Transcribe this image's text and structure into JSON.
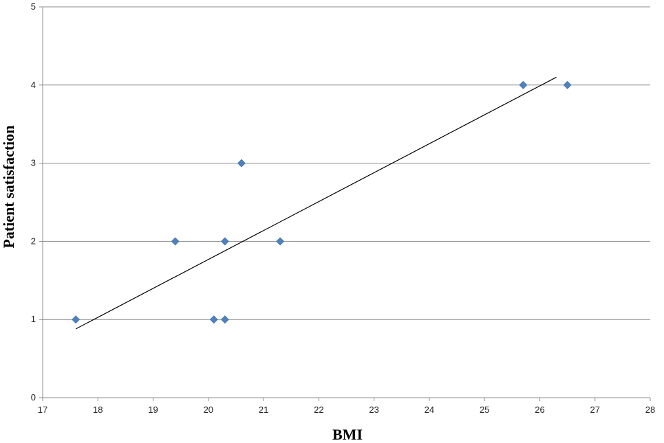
{
  "chart_data": {
    "type": "scatter",
    "title": "",
    "xlabel": "BMI",
    "ylabel": "Patient satisfaction",
    "xlim": [
      17,
      28
    ],
    "ylim": [
      0,
      5
    ],
    "x_ticks": [
      "17",
      "18",
      "19",
      "20",
      "21",
      "22",
      "23",
      "24",
      "25",
      "26",
      "27",
      "28"
    ],
    "y_ticks": [
      "0",
      "1",
      "2",
      "3",
      "4",
      "5"
    ],
    "grid": "horizontal",
    "legend": "none",
    "series": [
      {
        "marker": "diamond",
        "color": "#4f81bd",
        "points": [
          {
            "x": 17.6,
            "y": 1
          },
          {
            "x": 19.4,
            "y": 2
          },
          {
            "x": 20.1,
            "y": 1
          },
          {
            "x": 20.3,
            "y": 2
          },
          {
            "x": 20.3,
            "y": 1
          },
          {
            "x": 20.6,
            "y": 3
          },
          {
            "x": 21.3,
            "y": 2
          },
          {
            "x": 25.7,
            "y": 4
          },
          {
            "x": 26.5,
            "y": 4
          }
        ]
      }
    ],
    "trendline": {
      "type": "linear",
      "color": "#000000",
      "x_start": 17.6,
      "y_start": 0.88,
      "x_end": 26.3,
      "y_end": 4.1
    }
  }
}
